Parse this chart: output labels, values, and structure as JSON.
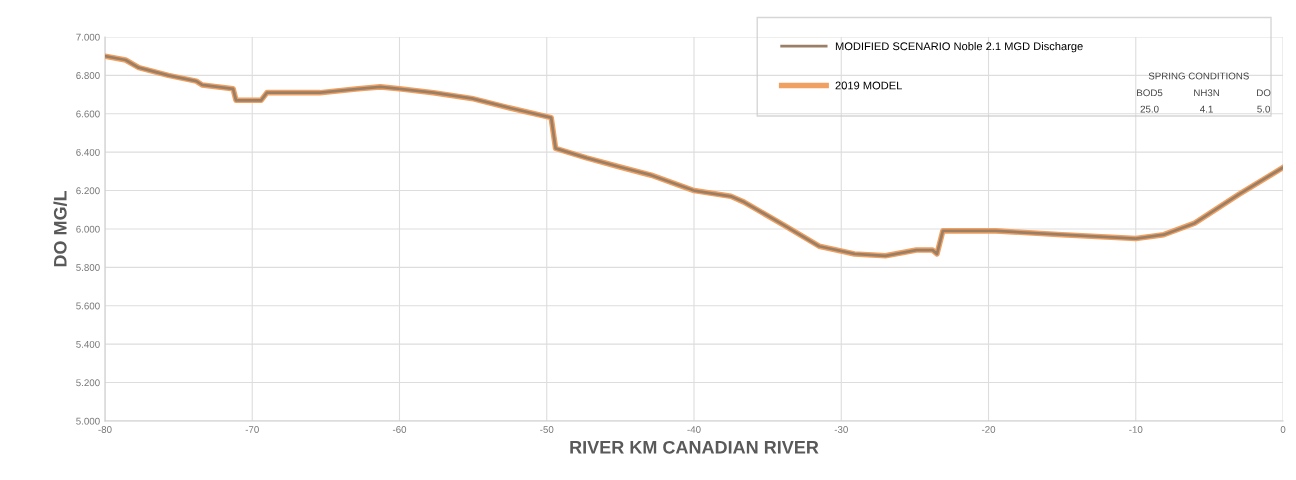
{
  "chart_data": {
    "type": "line",
    "xlabel": "RIVER KM CANADIAN RIVER",
    "ylabel": "DO MG/L",
    "x": [
      -80,
      -78.6,
      -77.7,
      -75.7,
      -73.8,
      -73.4,
      -71.3,
      -71.1,
      -69.4,
      -69.0,
      -65.4,
      -62.8,
      -61.3,
      -60.0,
      -57.7,
      -55.1,
      -52.5,
      -49.7,
      -49.4,
      -47.3,
      -44.9,
      -42.9,
      -40.0,
      -37.5,
      -36.6,
      -33.9,
      -31.5,
      -29.1,
      -27.0,
      -24.9,
      -23.8,
      -23.5,
      -23.1,
      -19.5,
      -15.0,
      -10.0,
      -8.1,
      -6.0,
      -3.0,
      0
    ],
    "series": [
      {
        "name": "2019 MODEL",
        "color": "#f0a060",
        "values": [
          6.9,
          6.88,
          6.84,
          6.8,
          6.77,
          6.75,
          6.73,
          6.67,
          6.67,
          6.71,
          6.71,
          6.73,
          6.74,
          6.73,
          6.71,
          6.68,
          6.63,
          6.58,
          6.42,
          6.37,
          6.32,
          6.28,
          6.2,
          6.17,
          6.14,
          6.02,
          5.91,
          5.87,
          5.86,
          5.89,
          5.89,
          5.87,
          5.99,
          5.99,
          5.97,
          5.95,
          5.97,
          6.03,
          6.18,
          6.32
        ]
      },
      {
        "name": "MODIFIED SCENARIO Noble 2.1 MGD Discharge",
        "color": "#9a7f66",
        "values": [
          6.9,
          6.88,
          6.84,
          6.8,
          6.77,
          6.75,
          6.73,
          6.67,
          6.67,
          6.71,
          6.71,
          6.73,
          6.74,
          6.73,
          6.71,
          6.68,
          6.63,
          6.58,
          6.42,
          6.37,
          6.32,
          6.28,
          6.2,
          6.17,
          6.14,
          6.02,
          5.91,
          5.87,
          5.86,
          5.89,
          5.89,
          5.87,
          5.99,
          5.99,
          5.97,
          5.95,
          5.97,
          6.03,
          6.18,
          6.32
        ]
      }
    ],
    "xlim": [
      -80,
      0
    ],
    "xticks": [
      -80,
      -70,
      -60,
      -50,
      -40,
      -30,
      -20,
      -10,
      0
    ],
    "ylim": [
      5.0,
      7.0
    ],
    "yticks": [
      {
        "value": 5.0,
        "label": "5.000"
      },
      {
        "value": 5.2,
        "label": "5.200"
      },
      {
        "value": 5.4,
        "label": "5.400"
      },
      {
        "value": 5.6,
        "label": "5.600"
      },
      {
        "value": 5.8,
        "label": "5.800"
      },
      {
        "value": 6.0,
        "label": "6.000"
      },
      {
        "value": 6.2,
        "label": "6.200"
      },
      {
        "value": 6.4,
        "label": "6.400"
      },
      {
        "value": 6.6,
        "label": "6.600"
      },
      {
        "value": 6.8,
        "label": "6.800"
      },
      {
        "value": 7.0,
        "label": "7.000"
      }
    ],
    "grid": true,
    "legend": "top right",
    "annotations": [
      "SPRING CONDITIONS",
      "BOD5",
      "NH3N",
      "DO",
      "25.0",
      "4.1",
      "5.0"
    ]
  }
}
